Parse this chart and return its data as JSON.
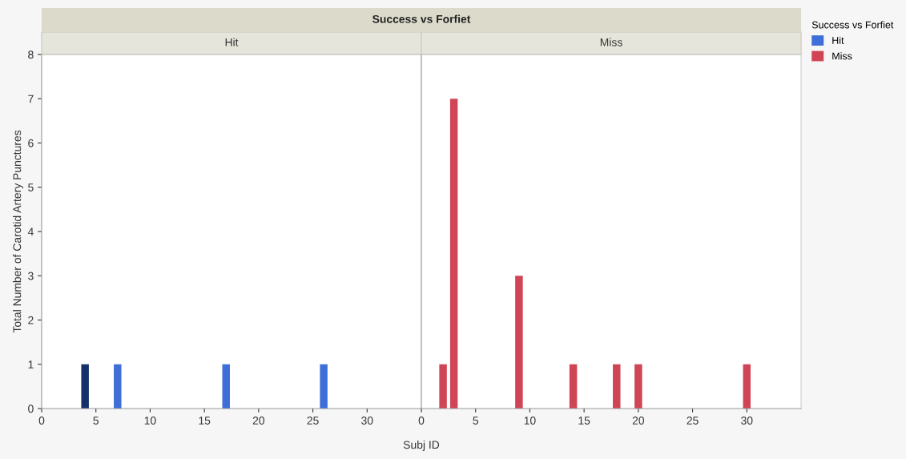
{
  "chart_data": [
    {
      "type": "bar",
      "title": "Success vs Forfiet",
      "subtitle": "Hit",
      "xlabel": "Subj ID",
      "ylabel": "Total Number of Carotid Artery Punctures",
      "series": [
        {
          "name": "Hit",
          "color": "#3e6fd8",
          "colors": [
            "#16306b",
            "#3e6fd8",
            "#3e6fd8",
            "#3e6fd8"
          ],
          "x": [
            4,
            7,
            17,
            26
          ],
          "values": [
            1,
            1,
            1,
            1
          ]
        }
      ],
      "xlim": [
        0,
        35
      ],
      "xticks": [
        0,
        5,
        10,
        15,
        20,
        25,
        30
      ],
      "ylim": [
        0,
        8
      ],
      "yticks": [
        0,
        1,
        2,
        3,
        4,
        5,
        6,
        7,
        8
      ],
      "grid": false
    },
    {
      "type": "bar",
      "subtitle": "Miss",
      "legend_title": "Success vs Forfiet",
      "legend": "right",
      "series": [
        {
          "name": "Miss",
          "color": "#d04556",
          "x": [
            2,
            3,
            9,
            14,
            18,
            20,
            30
          ],
          "values": [
            1,
            7,
            3,
            1,
            1,
            1,
            1
          ]
        }
      ],
      "xlim": [
        0,
        35
      ],
      "xticks": [
        0,
        5,
        10,
        15,
        20,
        25,
        30
      ],
      "ylim": [
        0,
        8
      ],
      "yticks": [
        0,
        1,
        2,
        3,
        4,
        5,
        6,
        7,
        8
      ],
      "grid": false,
      "tick_labels": "x"
    }
  ]
}
